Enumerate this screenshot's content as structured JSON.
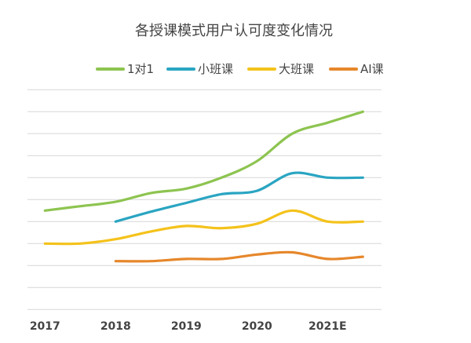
{
  "chart_data": {
    "type": "line",
    "title": "各授课模式用户认可度变化情况",
    "xlabel": "",
    "ylabel": "",
    "x": [
      2017,
      2017.5,
      2018,
      2018.5,
      2019,
      2019.5,
      2020,
      2020.5,
      2021,
      2021.5
    ],
    "x_tick_labels": [
      {
        "value": 2017,
        "label": "2017"
      },
      {
        "value": 2018,
        "label": "2018"
      },
      {
        "value": 2019,
        "label": "2019"
      },
      {
        "value": 2020,
        "label": "2020"
      },
      {
        "value": 2021,
        "label": "2021E"
      }
    ],
    "ylim": [
      0,
      10
    ],
    "y_tick_labels": "none",
    "grid": "horizontal",
    "smooth": true,
    "legend_position": "top",
    "series": [
      {
        "name": "1对1",
        "color": "#8DC450",
        "values": [
          4.5,
          4.7,
          4.9,
          5.3,
          5.5,
          6.0,
          6.75,
          8.0,
          8.5,
          9.0
        ]
      },
      {
        "name": "小班课",
        "color": "#2AA5C2",
        "values": [
          null,
          null,
          4.0,
          4.45,
          4.85,
          5.25,
          5.4,
          6.2,
          6.0,
          6.0
        ]
      },
      {
        "name": "大班课",
        "color": "#F4C21B",
        "values": [
          3.0,
          3.0,
          3.2,
          3.55,
          3.8,
          3.7,
          3.9,
          4.5,
          4.0,
          4.0
        ]
      },
      {
        "name": "AI课",
        "color": "#E6872B",
        "values": [
          null,
          null,
          2.2,
          2.2,
          2.3,
          2.3,
          2.5,
          2.6,
          2.3,
          2.4
        ]
      }
    ]
  }
}
